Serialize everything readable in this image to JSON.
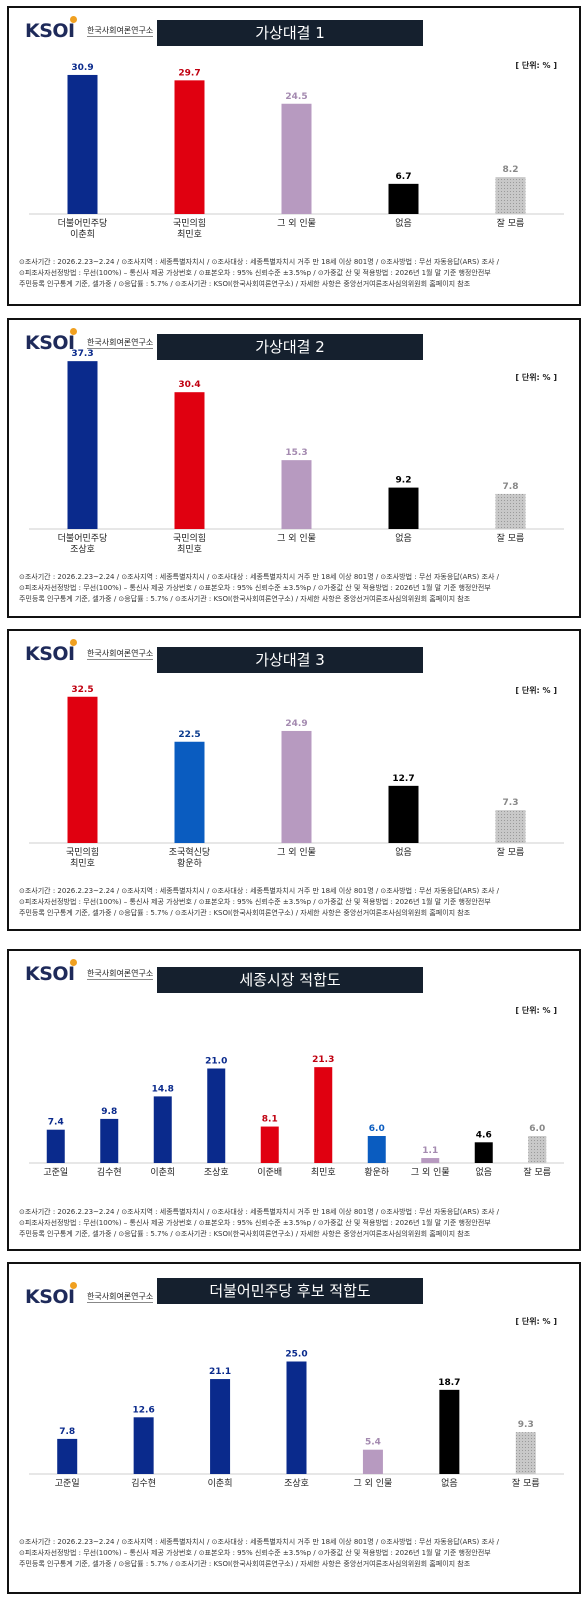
{
  "brand": {
    "logo_text": "KSOI",
    "logo_sub": "한국사회여론연구소",
    "unit": "[ 단위: % ]"
  },
  "footer": {
    "line1": "⊙조사기간 : 2026.2.23~2.24 / ⊙조사지역 : 세종특별자치시 / ⊙조사대상 : 세종특별자치시 거주 만 18세 이상 801명 / ⊙조사방법 : 무선 자동응답(ARS) 조사 /",
    "line2": "⊙피조사자선정방법 : 무선(100%) – 통신사 제공 가상번호 / ⊙표본오차 : 95% 신뢰수준 ±3.5%p / ⊙가중값 산 및 적용방법 : 2026년 1월 말 기준 행정안전부",
    "line3": "주민등록 인구통계 기준, 셀가중 / ⊙응답률 : 5.7% / ⊙조사기관 : KSOI(한국사회여론연구소) / 자세한 사항은 중앙선거여론조사심의위원회 홈페이지 참조"
  },
  "chart_data": [
    {
      "type": "bar",
      "title": "가상대결 1",
      "categories": [
        "더불어민주당\n이춘희",
        "국민의힘\n최민호",
        "그 외 인물",
        "없음",
        "잘 모름"
      ],
      "values": [
        30.9,
        29.7,
        24.5,
        6.7,
        8.2
      ],
      "colors": [
        "#0a2a8c",
        "#e00010",
        "#b79ac0",
        "#000000",
        "#b8b8b8"
      ],
      "label_colors": [
        "#0a2a8c",
        "#c00010",
        "#a48ab0",
        "#000000",
        "#888888"
      ],
      "ylim": [
        0,
        40
      ]
    },
    {
      "type": "bar",
      "title": "가상대결 2",
      "categories": [
        "더불어민주당\n조상호",
        "국민의힘\n최민호",
        "그 외 인물",
        "없음",
        "잘 모름"
      ],
      "values": [
        37.3,
        30.4,
        15.3,
        9.2,
        7.8
      ],
      "colors": [
        "#0a2a8c",
        "#e00010",
        "#b79ac0",
        "#000000",
        "#b8b8b8"
      ],
      "label_colors": [
        "#0a2a8c",
        "#c00010",
        "#a48ab0",
        "#000000",
        "#888888"
      ],
      "ylim": [
        0,
        40
      ]
    },
    {
      "type": "bar",
      "title": "가상대결 3",
      "categories": [
        "국민의힘\n최민호",
        "조국혁신당\n황운하",
        "그 외 인물",
        "없음",
        "잘 모름"
      ],
      "values": [
        32.5,
        22.5,
        24.9,
        12.7,
        7.3
      ],
      "colors": [
        "#e00010",
        "#0a5cc0",
        "#b79ac0",
        "#000000",
        "#b8b8b8"
      ],
      "label_colors": [
        "#c00010",
        "#0a3a8c",
        "#a48ab0",
        "#000000",
        "#888888"
      ],
      "ylim": [
        0,
        40
      ]
    },
    {
      "type": "bar",
      "title": "세종시장 적합도",
      "categories": [
        "고준일",
        "김수현",
        "이춘희",
        "조상호",
        "이준배",
        "최민호",
        "황운하",
        "그 외 인물",
        "없음",
        "잘 모름"
      ],
      "values": [
        7.4,
        9.8,
        14.8,
        21.0,
        8.1,
        21.3,
        6.0,
        1.1,
        4.6,
        6.0
      ],
      "colors": [
        "#0a2a8c",
        "#0a2a8c",
        "#0a2a8c",
        "#0a2a8c",
        "#e00010",
        "#e00010",
        "#0a5cc0",
        "#b79ac0",
        "#000000",
        "#b8b8b8"
      ],
      "label_colors": [
        "#0a2a8c",
        "#0a2a8c",
        "#0a2a8c",
        "#0a2a8c",
        "#c00010",
        "#c00010",
        "#0a5cc0",
        "#a48ab0",
        "#000000",
        "#888888"
      ],
      "ylim": [
        0,
        40
      ]
    },
    {
      "type": "bar",
      "title": "더불어민주당 후보 적합도",
      "categories": [
        "고준일",
        "김수현",
        "이춘희",
        "조상호",
        "그 외 인물",
        "없음",
        "잘 모름"
      ],
      "values": [
        7.8,
        12.6,
        21.1,
        25.0,
        5.4,
        18.7,
        9.3
      ],
      "colors": [
        "#0a2a8c",
        "#0a2a8c",
        "#0a2a8c",
        "#0a2a8c",
        "#b79ac0",
        "#000000",
        "#b8b8b8"
      ],
      "label_colors": [
        "#0a2a8c",
        "#0a2a8c",
        "#0a2a8c",
        "#0a2a8c",
        "#a48ab0",
        "#000000",
        "#888888"
      ],
      "ylim": [
        0,
        40
      ]
    }
  ]
}
